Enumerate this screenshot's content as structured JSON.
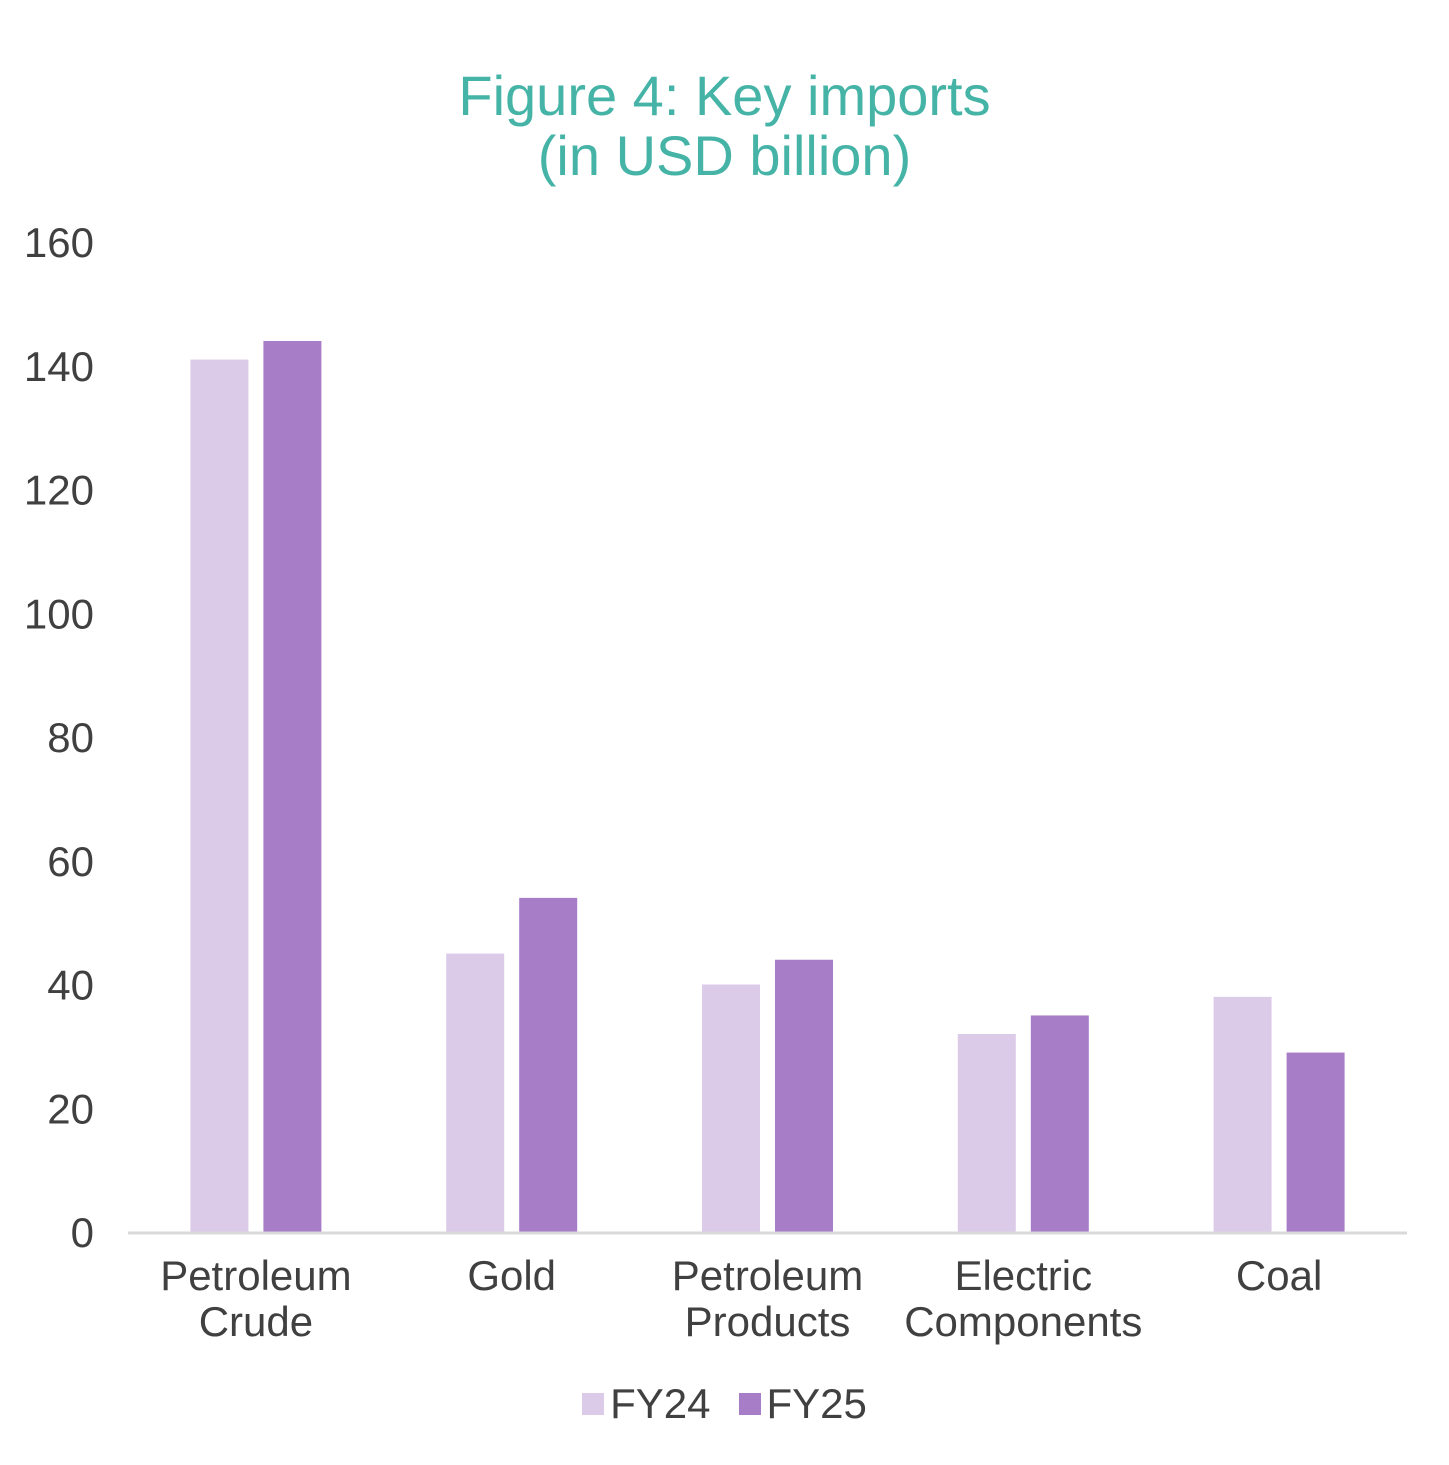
{
  "chart_data": {
    "type": "bar",
    "title_lines": [
      "Figure 4: Key imports",
      "(in USD billion)"
    ],
    "categories": [
      [
        "Petroleum",
        "Crude"
      ],
      [
        "Gold"
      ],
      [
        "Petroleum",
        "Products"
      ],
      [
        "Electric",
        "Components"
      ],
      [
        "Coal"
      ]
    ],
    "series": [
      {
        "name": "FY24",
        "color": "#dccbe8",
        "values": [
          141,
          45,
          40,
          32,
          38
        ]
      },
      {
        "name": "FY25",
        "color": "#a77dc8",
        "values": [
          144,
          54,
          44,
          35,
          29
        ]
      }
    ],
    "yticks": [
      "0",
      "20",
      "40",
      "60",
      "80",
      "100",
      "120",
      "140",
      "160"
    ],
    "ylim": [
      0,
      160
    ],
    "xlabel": "",
    "ylabel": "",
    "grid": false,
    "legend_position": "bottom"
  }
}
